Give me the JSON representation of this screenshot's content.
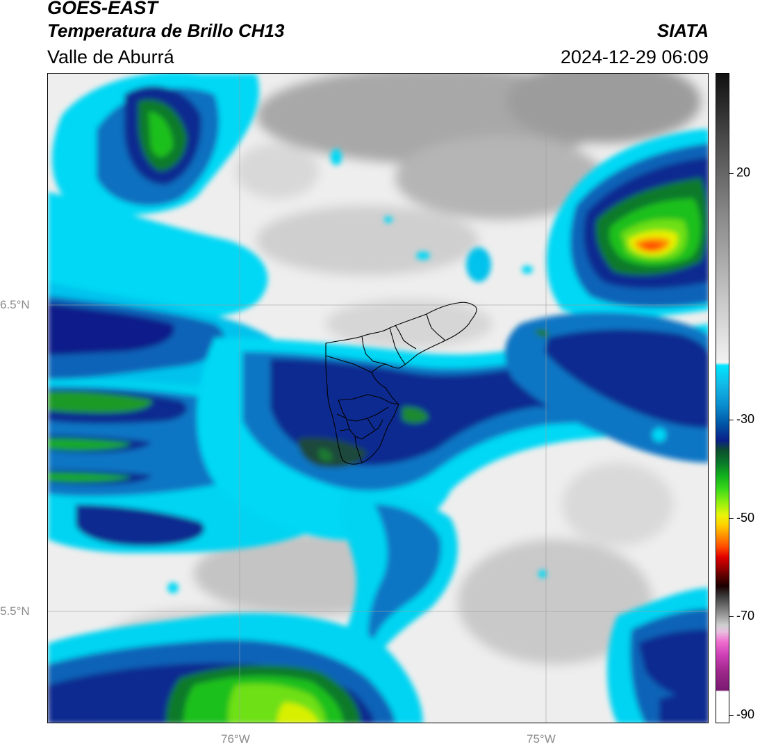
{
  "header": {
    "satellite": "GOES-EAST",
    "product": "Temperatura de Brillo CH13",
    "region": "Valle de Aburrá",
    "organization": "SIATA",
    "timestamp": "2024-12-29 06:09"
  },
  "map": {
    "lat_labels": [
      "6.5°N",
      "5.5°N"
    ],
    "lon_labels": [
      "76°W",
      "75°W"
    ]
  },
  "colorbar": {
    "labels": [
      "20",
      "-30",
      "-50",
      "-70",
      "-90"
    ]
  },
  "colors": {
    "cold_cloud_cyan": "#00e5ff",
    "cold_cloud_blue": "#0a1f8a",
    "very_cold_green": "#12b21c",
    "coldest_orange": "#ff6a00",
    "clear_gray": "#c8c8c8"
  }
}
